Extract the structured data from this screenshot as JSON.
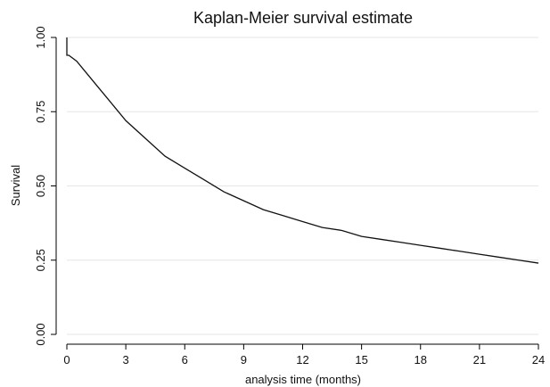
{
  "chart_data": {
    "type": "line",
    "title": "Kaplan-Meier survival estimate",
    "xlabel": "analysis time (months)",
    "ylabel": "Survival",
    "xlim": [
      0,
      24
    ],
    "ylim": [
      0,
      1
    ],
    "x_ticks": [
      0,
      3,
      6,
      9,
      12,
      15,
      18,
      21,
      24
    ],
    "y_ticks": [
      "0.00",
      "0.25",
      "0.50",
      "0.75",
      "1.00"
    ],
    "grid": "horizontal",
    "line_color": "#111111",
    "series": [
      {
        "step_at_start": true,
        "x": [
          0,
          0.1,
          0.5,
          1,
          1.5,
          2,
          2.5,
          3,
          4,
          5,
          6,
          7,
          8,
          9,
          10,
          11,
          12,
          13,
          14,
          15,
          16,
          17,
          18,
          19,
          20,
          21,
          22,
          23,
          24
        ],
        "y": [
          1.0,
          0.94,
          0.92,
          0.88,
          0.84,
          0.8,
          0.76,
          0.72,
          0.66,
          0.6,
          0.56,
          0.52,
          0.48,
          0.45,
          0.42,
          0.4,
          0.38,
          0.36,
          0.35,
          0.33,
          0.32,
          0.31,
          0.3,
          0.29,
          0.28,
          0.27,
          0.26,
          0.25,
          0.24
        ]
      }
    ]
  }
}
